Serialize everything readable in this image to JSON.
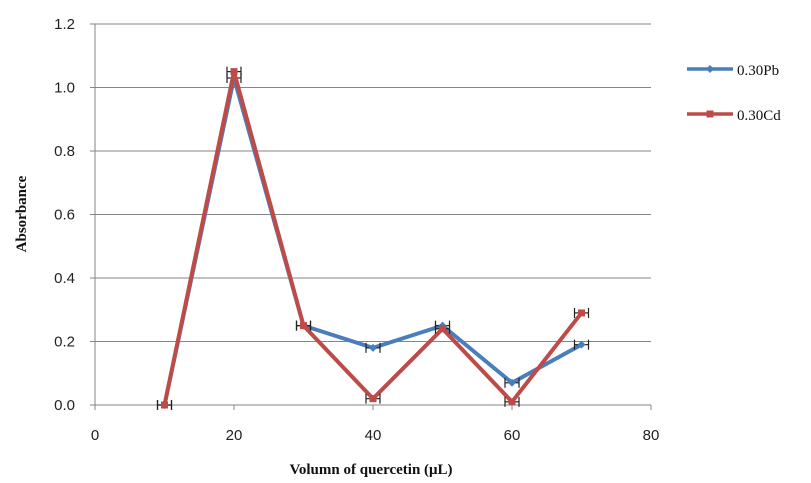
{
  "chart_data": {
    "type": "line",
    "title": "",
    "xlabel": "Volumn  of quercetin (μL)",
    "ylabel": "Absorbance",
    "xlim": [
      0,
      80
    ],
    "ylim": [
      0,
      1.2
    ],
    "xticks": [
      "0",
      "20",
      "40",
      "60",
      "80"
    ],
    "yticks": [
      "0.0",
      "0.2",
      "0.4",
      "0.6",
      "0.8",
      "1.0",
      "1.2"
    ],
    "grid": true,
    "legend_position": "right",
    "error_bars": true,
    "series": [
      {
        "name": "0.30Pb",
        "color": "#4a7ebb",
        "marker": "diamond",
        "x": [
          10,
          20,
          30,
          40,
          50,
          60,
          70
        ],
        "y": [
          0.0,
          1.03,
          0.25,
          0.18,
          0.25,
          0.07,
          0.19
        ]
      },
      {
        "name": "0.30Cd",
        "color": "#be4b48",
        "marker": "square",
        "x": [
          10,
          20,
          30,
          40,
          50,
          60,
          70
        ],
        "y": [
          0.0,
          1.05,
          0.25,
          0.02,
          0.24,
          0.01,
          0.29
        ]
      }
    ]
  }
}
